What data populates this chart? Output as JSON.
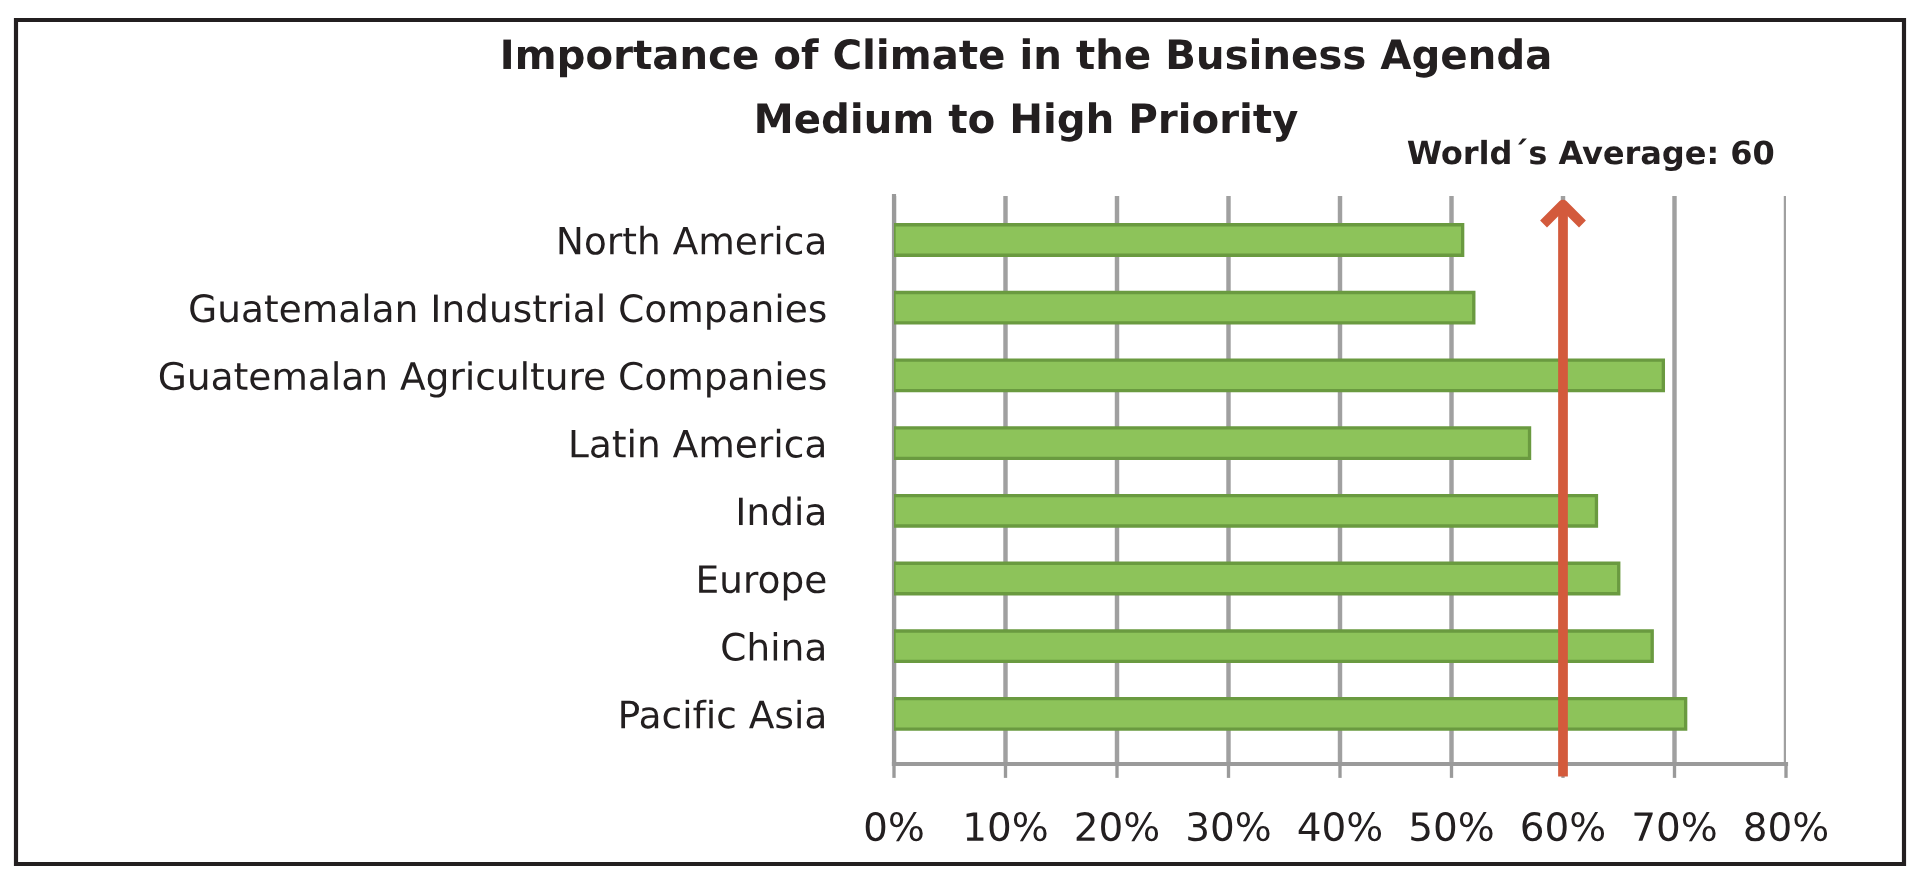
{
  "chart_data": {
    "type": "bar",
    "orientation": "horizontal",
    "title": "Importance of Climate in the Business Agenda",
    "subtitle": "Medium to High Priority",
    "categories": [
      "North America",
      "Guatemalan Industrial Companies",
      "Guatemalan Agriculture Companies",
      "Latin America",
      "India",
      "Europe",
      "China",
      "Pacific Asia"
    ],
    "values": [
      51,
      52,
      69,
      57,
      63,
      65,
      68,
      71
    ],
    "color": "#8dc35a",
    "xlim": [
      0,
      80
    ],
    "xticks": [
      {
        "value": 0,
        "label": "0%"
      },
      {
        "value": 10,
        "label": "10%"
      },
      {
        "value": 20,
        "label": "20%"
      },
      {
        "value": 30,
        "label": "30%"
      },
      {
        "value": 40,
        "label": "40%"
      },
      {
        "value": 50,
        "label": "50%"
      },
      {
        "value": 60,
        "label": "60%"
      },
      {
        "value": 70,
        "label": "70%"
      },
      {
        "value": 80,
        "label": "80%"
      }
    ],
    "grid": "x",
    "ref_lines": [
      {
        "axis": "x",
        "value": 60,
        "label": "World´s Average: 60",
        "color": "#d35a3c"
      }
    ]
  }
}
